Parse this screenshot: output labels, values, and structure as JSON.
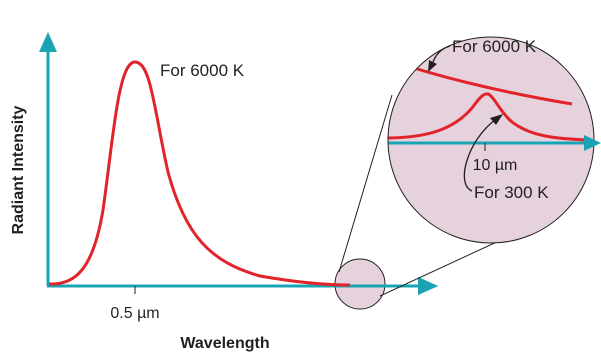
{
  "labels": {
    "main_curve": "For 6000 K",
    "main_tick": "0.5 µm",
    "x_axis_title": "Wavelength",
    "y_axis_title": "Radiant Intensity",
    "inset_curve_6000": "For 6000 K",
    "inset_curve_300": "For 300 K",
    "inset_tick": "10 µm"
  },
  "colors": {
    "axis": "#1aa4b3",
    "curve": "#e2232a",
    "inset_fill": "#e6d2dc",
    "outline": "#231f20",
    "text": "#231f20"
  }
}
